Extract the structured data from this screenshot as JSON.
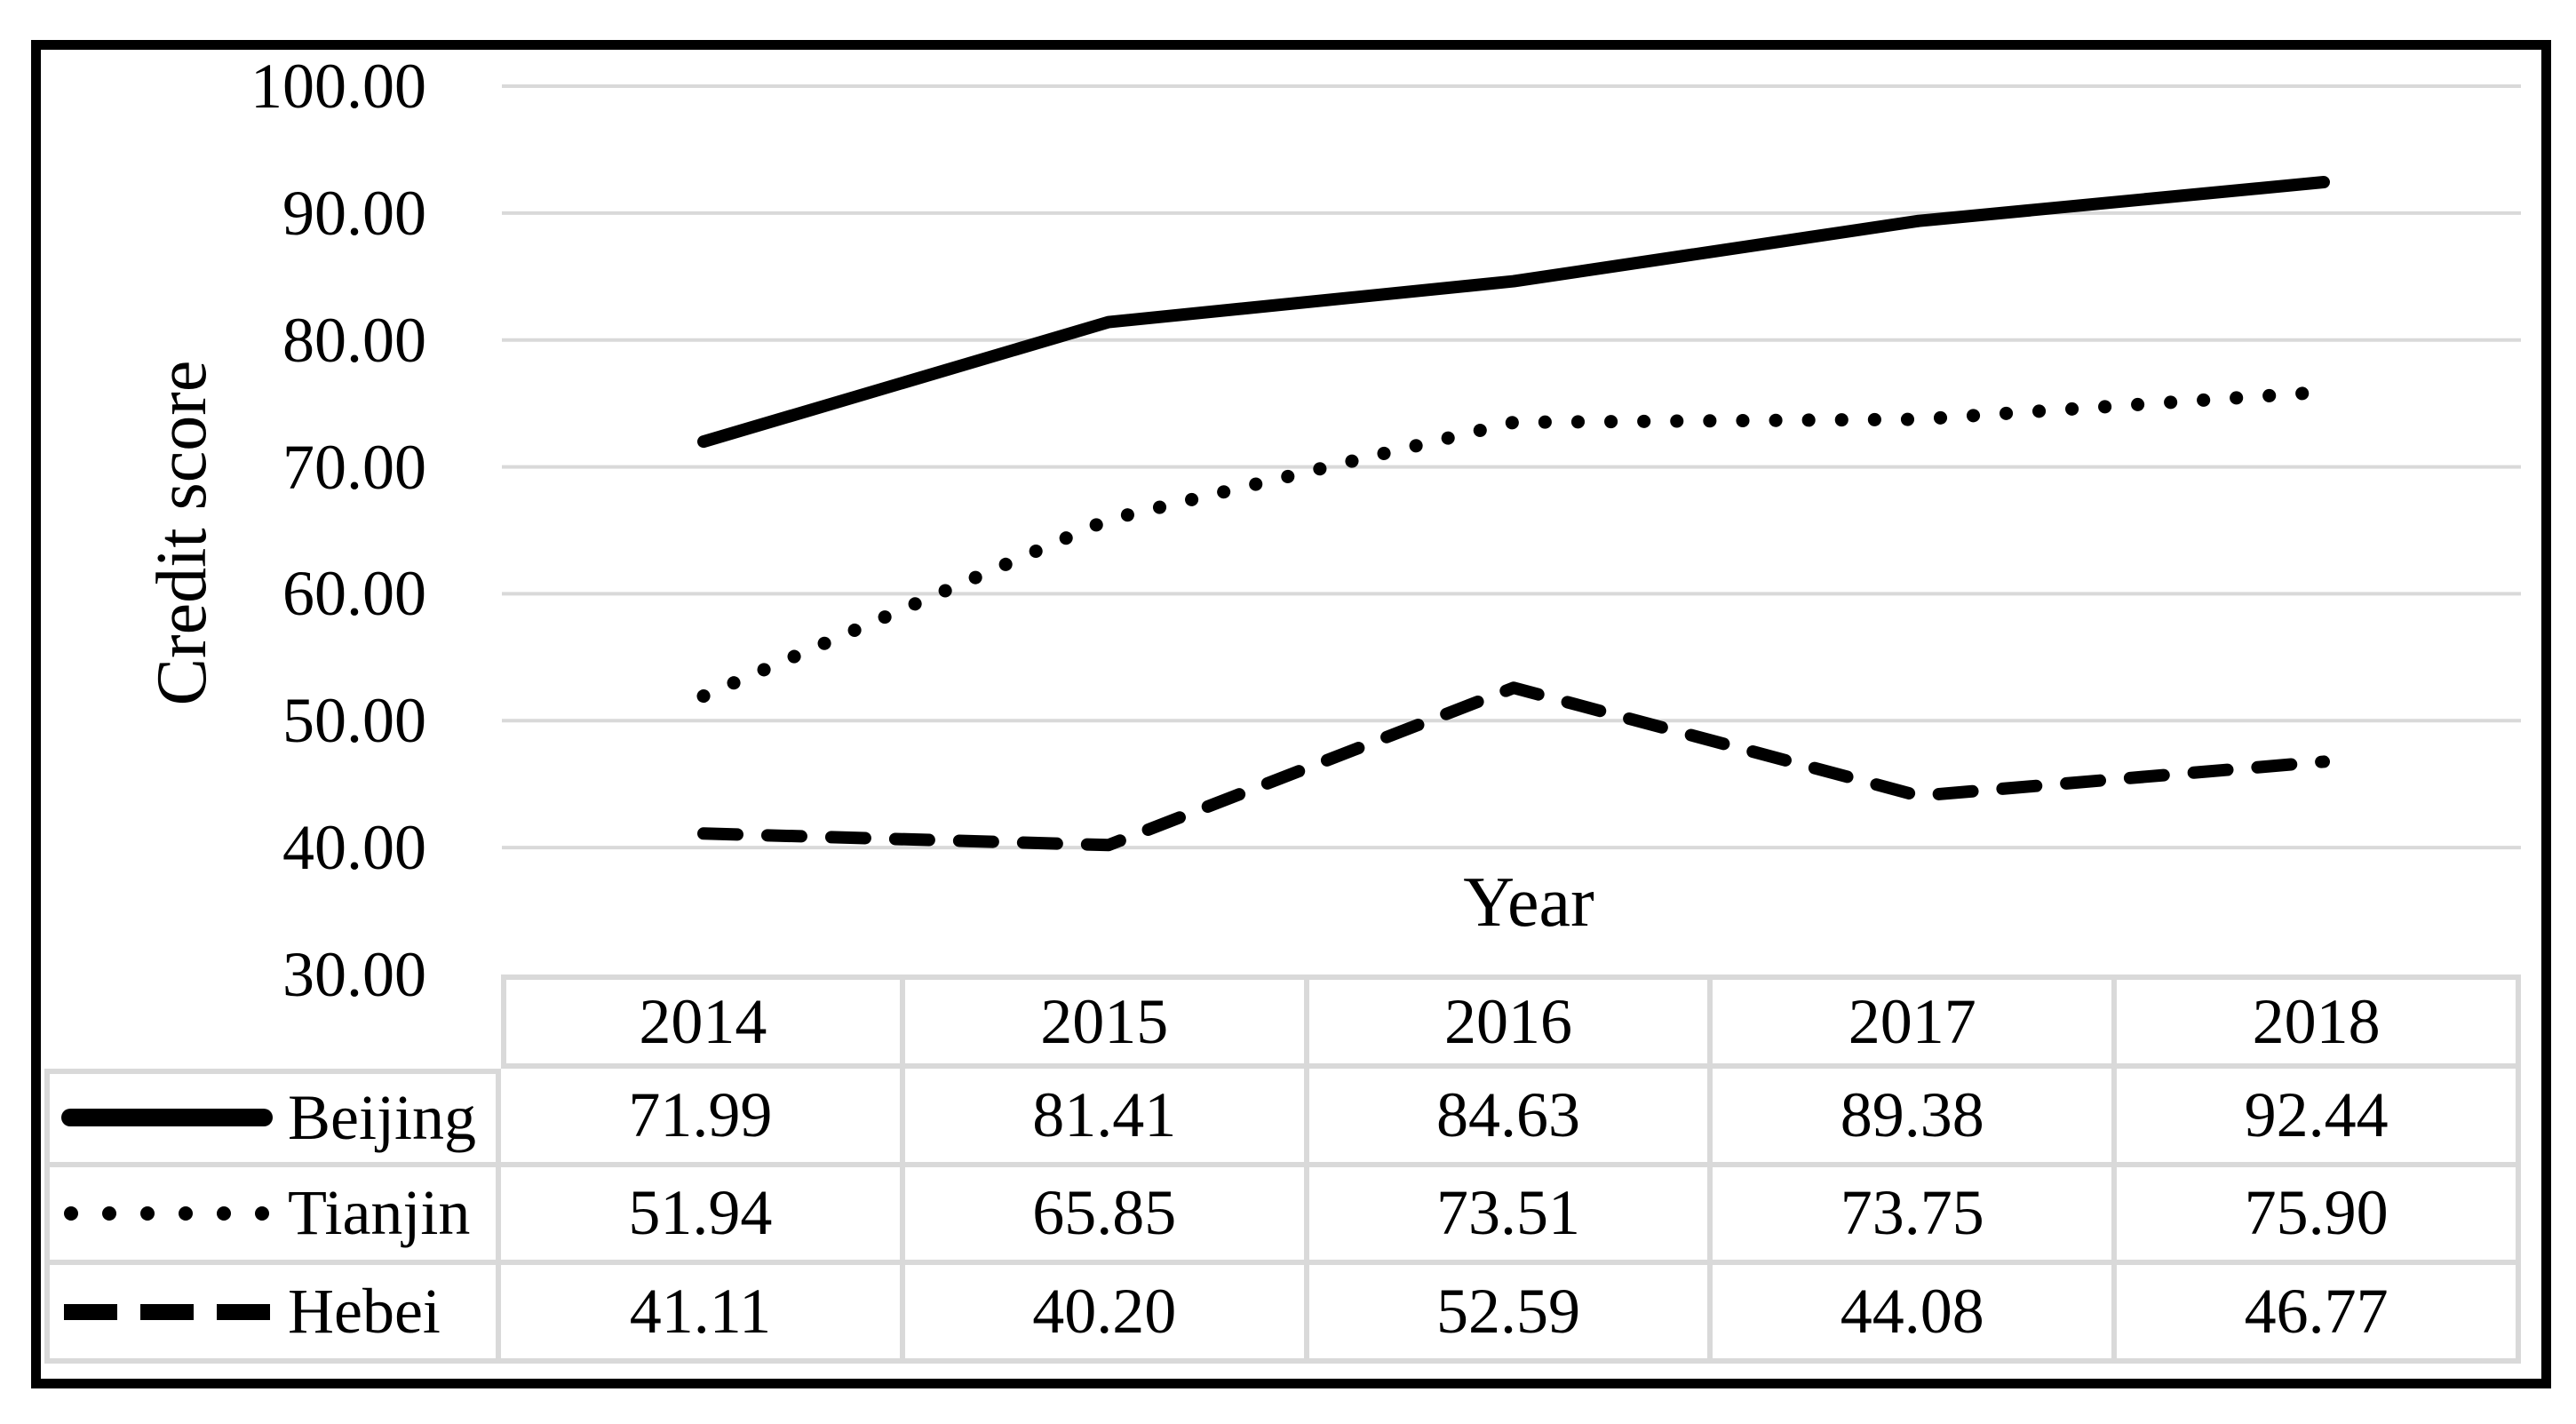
{
  "chart_data": {
    "type": "line",
    "title": "",
    "xlabel": "Year",
    "ylabel": "Credit score",
    "categories": [
      "2014",
      "2015",
      "2016",
      "2017",
      "2018"
    ],
    "series": [
      {
        "name": "Beijing",
        "line_style": "solid",
        "values": [
          71.99,
          81.41,
          84.63,
          89.38,
          92.44
        ]
      },
      {
        "name": "Tianjin",
        "line_style": "dotted",
        "values": [
          51.94,
          65.85,
          73.51,
          73.75,
          75.9
        ]
      },
      {
        "name": "Hebei",
        "line_style": "dashed",
        "values": [
          41.11,
          40.2,
          52.59,
          44.08,
          46.77
        ]
      }
    ],
    "ylim": [
      30,
      100
    ],
    "y_ticks": [
      100,
      90,
      80,
      70,
      60,
      50,
      40,
      30
    ],
    "y_tick_decimals": 2,
    "grid": "horizontal-only",
    "legend_position": "table-rows-left"
  },
  "table": {
    "columns": [
      "2014",
      "2015",
      "2016",
      "2017",
      "2018"
    ],
    "rows": [
      {
        "name": "Beijing",
        "key": "solid-line",
        "values": [
          "71.99",
          "81.41",
          "84.63",
          "89.38",
          "92.44"
        ]
      },
      {
        "name": "Tianjin",
        "key": "dotted-line",
        "values": [
          "51.94",
          "65.85",
          "73.51",
          "73.75",
          "75.90"
        ]
      },
      {
        "name": "Hebei",
        "key": "dashed-line",
        "values": [
          "41.11",
          "40.20",
          "52.59",
          "44.08",
          "46.77"
        ]
      }
    ]
  },
  "colors": {
    "line": "#000000",
    "grid": "#d9d9d9",
    "table_border": "#d9d9d9",
    "frame_border": "#000000",
    "background": "#ffffff",
    "text": "#000000"
  }
}
